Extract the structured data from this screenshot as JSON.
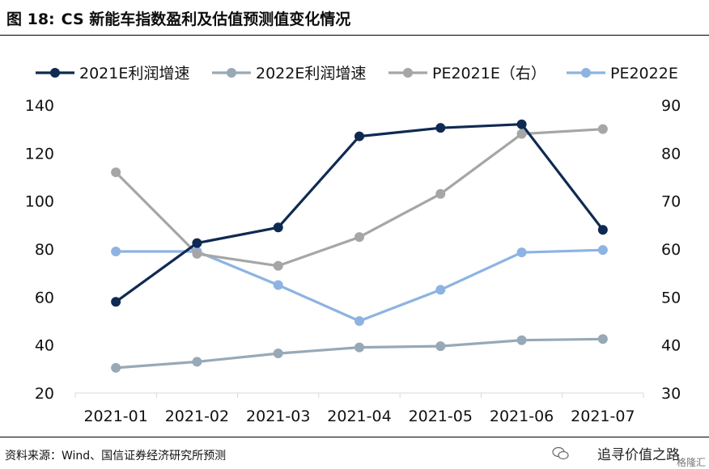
{
  "header": {
    "figure_label": "图 18:",
    "title": "CS 新能车指数盈利及估值预测值变化情况"
  },
  "footer": {
    "source": "资料来源：Wind、国信证券经济研究所预测",
    "watermark": "追寻价值之路",
    "watermark2": "格隆汇"
  },
  "chart_data": {
    "type": "line",
    "categories": [
      "2021-01",
      "2021-02",
      "2021-03",
      "2021-04",
      "2021-05",
      "2021-06",
      "2021-07"
    ],
    "y_left": {
      "ylim": [
        20,
        140
      ],
      "ticks": [
        20,
        40,
        60,
        80,
        100,
        120,
        140
      ]
    },
    "y_right": {
      "ylim": [
        30,
        90
      ],
      "ticks": [
        30,
        40,
        50,
        60,
        70,
        80,
        90
      ]
    },
    "grid": false,
    "legend_position": "top",
    "series": [
      {
        "name": "2021E利润增速",
        "axis": "left",
        "color": "#0f2a52",
        "values": [
          58,
          82.5,
          89,
          127,
          130.5,
          132,
          88
        ]
      },
      {
        "name": "2022E利润增速",
        "axis": "left",
        "color": "#97a9b7",
        "values": [
          30.5,
          33,
          36.5,
          39,
          39.5,
          42,
          42.5
        ]
      },
      {
        "name": "PE2021E（右）",
        "axis": "right",
        "color": "#a6a6a6",
        "values": [
          76,
          59,
          56.5,
          62.5,
          71.5,
          84,
          85
        ]
      },
      {
        "name": "PE2022E",
        "axis": "right",
        "color": "#8db3e2",
        "values": [
          59.5,
          59.5,
          52.5,
          45,
          51.5,
          59.3,
          59.8
        ]
      }
    ]
  }
}
